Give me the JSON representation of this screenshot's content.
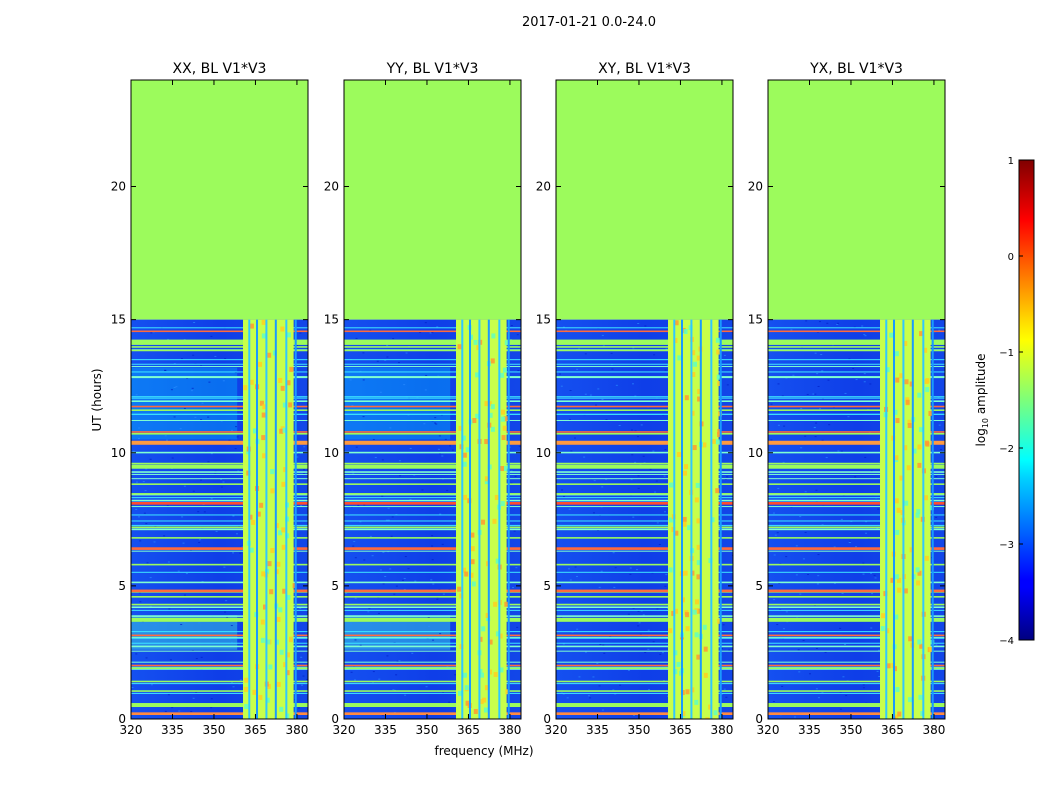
{
  "figure": {
    "suptitle": "2017-01-21 0.0-24.0",
    "xlabel": "frequency (MHz)",
    "ylabel": "UT (hours)"
  },
  "chart_data": {
    "type": "heatmap",
    "colormap": "jet",
    "x_ticks": [
      "320",
      "335",
      "350",
      "365",
      "380"
    ],
    "x_tick_values": [
      320,
      335,
      350,
      365,
      380
    ],
    "xlim": [
      320,
      384
    ],
    "y_ticks": [
      "0",
      "5",
      "10",
      "15",
      "20"
    ],
    "y_tick_values": [
      0,
      5,
      10,
      15,
      20
    ],
    "ylim": [
      0,
      24
    ],
    "data_end_hour": 15,
    "empty_region_color": "#9cfb5c",
    "panels": [
      {
        "title": "XX, BL V1*V3",
        "band_start_mhz": 360.5,
        "band_end_mhz": 378.8
      },
      {
        "title": "YY, BL V1*V3",
        "band_start_mhz": 360.5,
        "band_end_mhz": 378.8
      },
      {
        "title": "XY, BL V1*V3",
        "band_start_mhz": 360.5,
        "band_end_mhz": 378.8
      },
      {
        "title": "YX, BL V1*V3",
        "band_start_mhz": 360.5,
        "band_end_mhz": 378.8
      }
    ],
    "colorbar": {
      "label": "log",
      "label_subscript": "10",
      "label_suffix": " amplitude",
      "ticks": [
        "1",
        "0",
        "−1",
        "−2",
        "−3",
        "−4"
      ],
      "tick_values": [
        1,
        0,
        -1,
        -2,
        -3,
        -4
      ],
      "range": [
        -4,
        1
      ]
    }
  }
}
